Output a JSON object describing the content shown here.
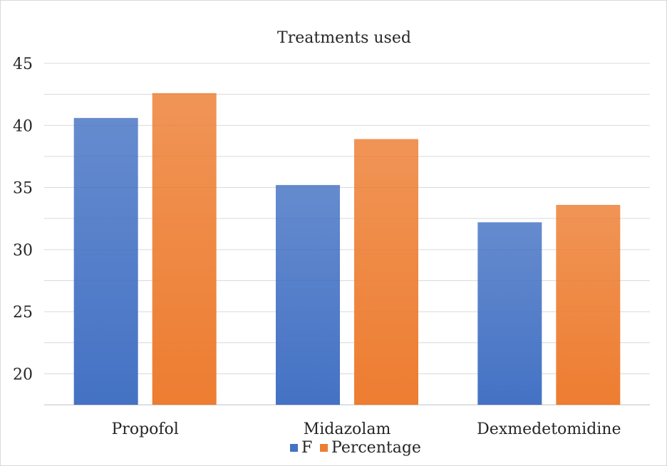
{
  "chart_data": {
    "type": "bar",
    "title": "Treatments used",
    "xlabel": "",
    "ylabel": "",
    "categories": [
      "Propofol",
      "Midazolam",
      "Dexmedetomidine"
    ],
    "series": [
      {
        "name": "F",
        "values": [
          40.6,
          35.2,
          32.2
        ],
        "color": "#4472c4"
      },
      {
        "name": "Percentage",
        "values": [
          42.6,
          38.9,
          33.6
        ],
        "color": "#ed7d31"
      }
    ],
    "ylim": [
      17.5,
      45
    ],
    "y_ticks": [
      20,
      25,
      30,
      35,
      40,
      45
    ],
    "grid": true,
    "legend_position": "bottom"
  }
}
